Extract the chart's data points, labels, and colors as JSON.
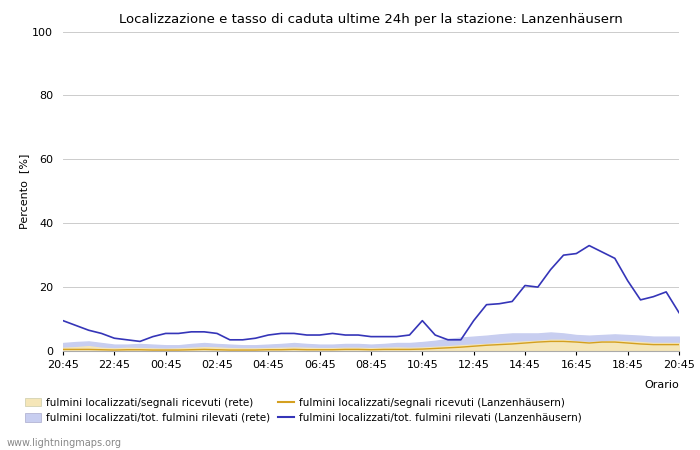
{
  "title": "Localizzazione e tasso di caduta ultime 24h per la stazione: Lanzenhäusern",
  "ylabel": "Percento  [%]",
  "xlabel": "Orario",
  "ylim": [
    0,
    100
  ],
  "yticks": [
    0,
    20,
    40,
    60,
    80,
    100
  ],
  "xtick_labels": [
    "20:45",
    "22:45",
    "00:45",
    "02:45",
    "04:45",
    "06:45",
    "08:45",
    "10:45",
    "12:45",
    "14:45",
    "16:45",
    "18:45",
    "20:45"
  ],
  "watermark": "www.lightningmaps.org",
  "color_fill_rete_signal": "#f5e6b8",
  "color_fill_rete_total": "#c8cef0",
  "color_line_lanz_signal": "#d4a020",
  "color_line_lanz_total": "#3535b8",
  "legend": [
    {
      "label": "fulmini localizzati/segnali ricevuti (rete)",
      "type": "fill",
      "color": "#f5e6b8"
    },
    {
      "label": "fulmini localizzati/segnali ricevuti (Lanzenhäusern)",
      "type": "line",
      "color": "#d4a020"
    },
    {
      "label": "fulmini localizzati/tot. fulmini rilevati (rete)",
      "type": "fill",
      "color": "#c8cef0"
    },
    {
      "label": "fulmini localizzati/tot. fulmini rilevati (Lanzenhäusern)",
      "type": "line",
      "color": "#3535b8"
    }
  ],
  "lanz_total": [
    9.5,
    8.0,
    6.5,
    5.5,
    4.0,
    3.5,
    3.0,
    4.5,
    5.5,
    5.5,
    6.0,
    6.0,
    5.5,
    3.5,
    3.5,
    4.0,
    5.0,
    5.5,
    5.5,
    5.0,
    5.0,
    5.5,
    5.0,
    5.0,
    4.5,
    4.5,
    4.5,
    5.0,
    9.5,
    5.0,
    3.5,
    3.5,
    9.5,
    14.5,
    14.8,
    15.5,
    20.5,
    20.0,
    25.5,
    30.0,
    30.5,
    33.0,
    31.0,
    29.0,
    22.0,
    16.0,
    17.0,
    18.5,
    12.0
  ],
  "lanz_signal": [
    0.5,
    0.5,
    0.5,
    0.4,
    0.3,
    0.4,
    0.4,
    0.3,
    0.3,
    0.3,
    0.4,
    0.5,
    0.4,
    0.3,
    0.3,
    0.3,
    0.4,
    0.4,
    0.5,
    0.4,
    0.4,
    0.4,
    0.5,
    0.5,
    0.4,
    0.5,
    0.5,
    0.5,
    0.6,
    0.8,
    1.0,
    1.2,
    1.5,
    1.8,
    2.0,
    2.2,
    2.5,
    2.8,
    3.0,
    3.0,
    2.8,
    2.5,
    2.8,
    2.8,
    2.5,
    2.2,
    2.0,
    2.0,
    2.0
  ],
  "rete_signal": [
    1.0,
    1.2,
    1.5,
    1.0,
    0.8,
    1.0,
    0.9,
    0.8,
    0.7,
    0.8,
    1.0,
    1.2,
    1.1,
    0.9,
    0.8,
    0.8,
    0.9,
    1.0,
    1.1,
    1.0,
    0.9,
    0.9,
    1.0,
    1.0,
    0.9,
    1.0,
    1.1,
    1.0,
    1.1,
    1.3,
    1.5,
    1.8,
    2.0,
    2.2,
    2.5,
    2.8,
    3.0,
    3.2,
    3.5,
    3.5,
    3.0,
    2.8,
    3.0,
    3.2,
    3.0,
    2.8,
    2.5,
    2.5,
    2.5
  ],
  "rete_total": [
    2.5,
    2.8,
    3.0,
    2.5,
    2.0,
    2.0,
    2.2,
    2.0,
    1.8,
    1.8,
    2.2,
    2.5,
    2.2,
    2.0,
    1.8,
    1.8,
    2.0,
    2.2,
    2.5,
    2.2,
    2.0,
    2.0,
    2.2,
    2.2,
    2.0,
    2.2,
    2.5,
    2.5,
    2.8,
    3.2,
    3.8,
    4.2,
    4.5,
    4.8,
    5.2,
    5.5,
    5.5,
    5.5,
    5.8,
    5.5,
    5.0,
    4.8,
    5.0,
    5.2,
    5.0,
    4.8,
    4.5,
    4.5,
    4.5
  ]
}
